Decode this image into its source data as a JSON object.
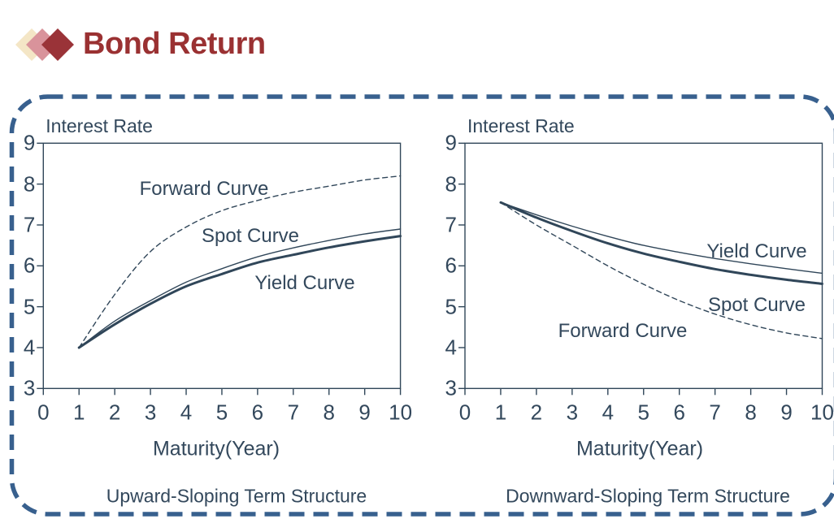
{
  "page": {
    "title": "Bond Return"
  },
  "logo": {
    "diamond_colors": [
      "#F4E6C6",
      "#D9939B",
      "#9A3338"
    ],
    "names": [
      "cream",
      "rose",
      "darkred"
    ]
  },
  "frame": {
    "border_color": "#38608E",
    "style": "dashed-rounded"
  },
  "ink_color": "#304659",
  "chart_data": [
    {
      "type": "line",
      "title": "Upward-Sloping Term Structure",
      "ylabel": "Interest Rate",
      "xlabel": "Maturity(Year)",
      "xlim": [
        0,
        10
      ],
      "ylim": [
        3,
        9
      ],
      "x_ticks": [
        0,
        1,
        2,
        3,
        4,
        5,
        6,
        7,
        8,
        9,
        10
      ],
      "y_ticks": [
        9,
        8,
        7,
        6,
        5,
        4,
        3
      ],
      "grid": false,
      "legend": "inline-labels",
      "x": [
        1,
        2,
        3,
        4,
        5,
        6,
        7,
        8,
        9,
        10
      ],
      "series": [
        {
          "name": "Forward Curve",
          "style": "dashed",
          "values": [
            4.0,
            5.3,
            6.35,
            6.95,
            7.35,
            7.6,
            7.8,
            7.95,
            8.1,
            8.2
          ]
        },
        {
          "name": "Spot Curve",
          "style": "thin",
          "values": [
            4.0,
            4.65,
            5.15,
            5.6,
            5.93,
            6.22,
            6.44,
            6.62,
            6.78,
            6.9
          ]
        },
        {
          "name": "Yield Curve",
          "style": "thick",
          "values": [
            4.0,
            4.57,
            5.07,
            5.5,
            5.8,
            6.08,
            6.27,
            6.45,
            6.6,
            6.73
          ]
        }
      ]
    },
    {
      "type": "line",
      "title": "Downward-Sloping Term Structure",
      "ylabel": "Interest Rate",
      "xlabel": "Maturity(Year)",
      "xlim": [
        0,
        10
      ],
      "ylim": [
        3,
        9
      ],
      "x_ticks": [
        0,
        1,
        2,
        3,
        4,
        5,
        6,
        7,
        8,
        9,
        10
      ],
      "y_ticks": [
        9,
        8,
        7,
        6,
        5,
        4,
        3
      ],
      "grid": false,
      "legend": "inline-labels",
      "x": [
        1,
        2,
        3,
        4,
        5,
        6,
        7,
        8,
        9,
        10
      ],
      "series": [
        {
          "name": "Yield Curve",
          "style": "thin",
          "values": [
            7.55,
            7.25,
            6.97,
            6.72,
            6.5,
            6.33,
            6.18,
            6.05,
            5.93,
            5.82
          ]
        },
        {
          "name": "Spot Curve",
          "style": "thick",
          "values": [
            7.55,
            7.18,
            6.85,
            6.55,
            6.3,
            6.1,
            5.92,
            5.78,
            5.66,
            5.56
          ]
        },
        {
          "name": "Forward Curve",
          "style": "dashed",
          "values": [
            7.55,
            7.0,
            6.5,
            6.0,
            5.55,
            5.15,
            4.82,
            4.56,
            4.36,
            4.22
          ]
        }
      ]
    }
  ]
}
